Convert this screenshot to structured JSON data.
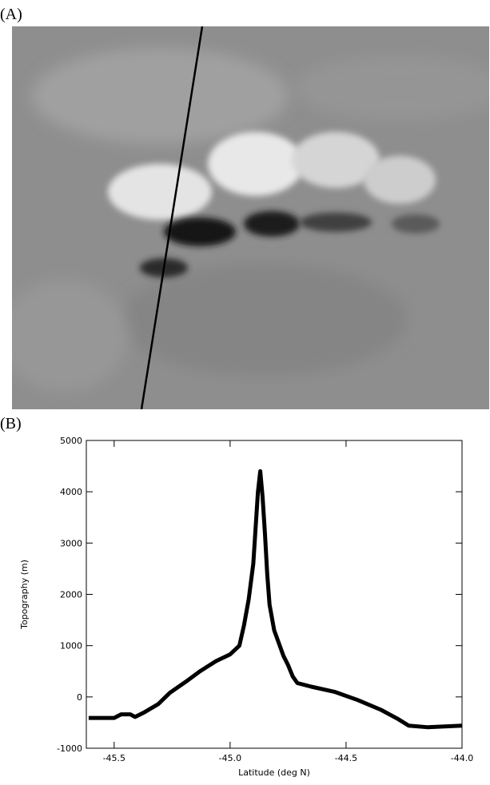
{
  "panel_labels": [
    "(A)",
    "(B)"
  ],
  "chart_data": {
    "type": "line",
    "x_label": "Latitude (deg N)",
    "y_label": "Topography (m)",
    "x": [
      -45.61,
      -45.5,
      -45.47,
      -45.43,
      -45.41,
      -45.37,
      -45.31,
      -45.26,
      -45.19,
      -45.13,
      -45.06,
      -45.0,
      -44.96,
      -44.94,
      -44.92,
      -44.9,
      -44.89,
      -44.88,
      -44.87,
      -44.86,
      -44.85,
      -44.84,
      -44.83,
      -44.81,
      -44.79,
      -44.77,
      -44.75,
      -44.73,
      -44.71,
      -44.65,
      -44.55,
      -44.45,
      -44.35,
      -44.28,
      -44.23,
      -44.15,
      -44.0
    ],
    "series": [
      {
        "color": "#000000",
        "values": [
          -410,
          -410,
          -340,
          -340,
          -390,
          -300,
          -140,
          80,
          300,
          500,
          700,
          830,
          1000,
          1400,
          1900,
          2600,
          3300,
          4000,
          4400,
          3900,
          3200,
          2400,
          1800,
          1300,
          1050,
          800,
          620,
          400,
          270,
          200,
          100,
          -60,
          -250,
          -420,
          -560,
          -590,
          -560
        ]
      }
    ],
    "xlim": [
      -45.62,
      -44.0
    ],
    "xticks": [
      -45.5,
      {
        "value": -45.0,
        "label": "-45.0"
      },
      -44.5,
      {
        "value": -44.0,
        "label": "-44.0"
      }
    ],
    "ylim": [
      -1000,
      5000
    ],
    "yticks": [
      -1000,
      0,
      1000,
      2000,
      3000,
      4000,
      5000
    ]
  }
}
